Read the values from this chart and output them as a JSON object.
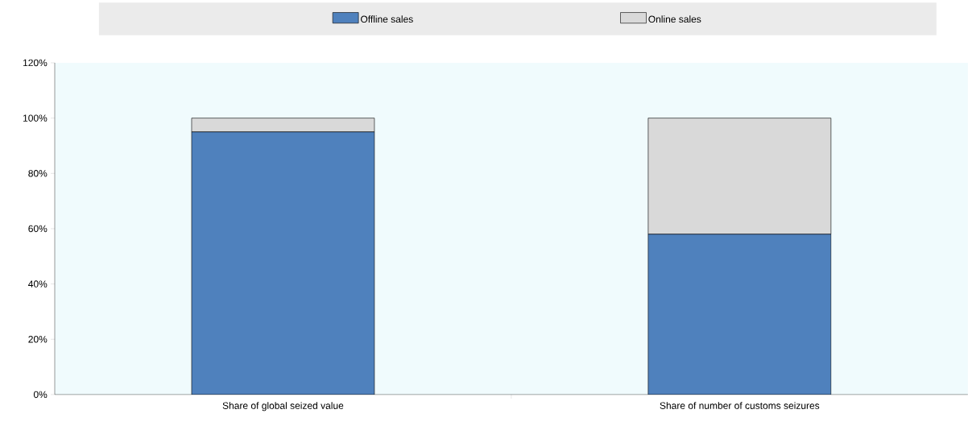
{
  "chart_data": {
    "type": "bar",
    "stacked": true,
    "legend": "top",
    "categories": [
      "Share of global seized value",
      "Share of number of customs seizures"
    ],
    "series": [
      {
        "name": "Offline sales",
        "color": "#4f81bd",
        "values": [
          95,
          58
        ]
      },
      {
        "name": "Online sales",
        "color": "#d9d9d9",
        "values": [
          5,
          42
        ]
      }
    ],
    "ylim": [
      0,
      120
    ],
    "yticks": [
      {
        "value": 0,
        "label": "0%"
      },
      {
        "value": 20,
        "label": "20%"
      },
      {
        "value": 40,
        "label": "40%"
      },
      {
        "value": 60,
        "label": "60%"
      },
      {
        "value": 80,
        "label": "80%"
      },
      {
        "value": 100,
        "label": "100%"
      },
      {
        "value": 120,
        "label": "120%"
      }
    ]
  }
}
